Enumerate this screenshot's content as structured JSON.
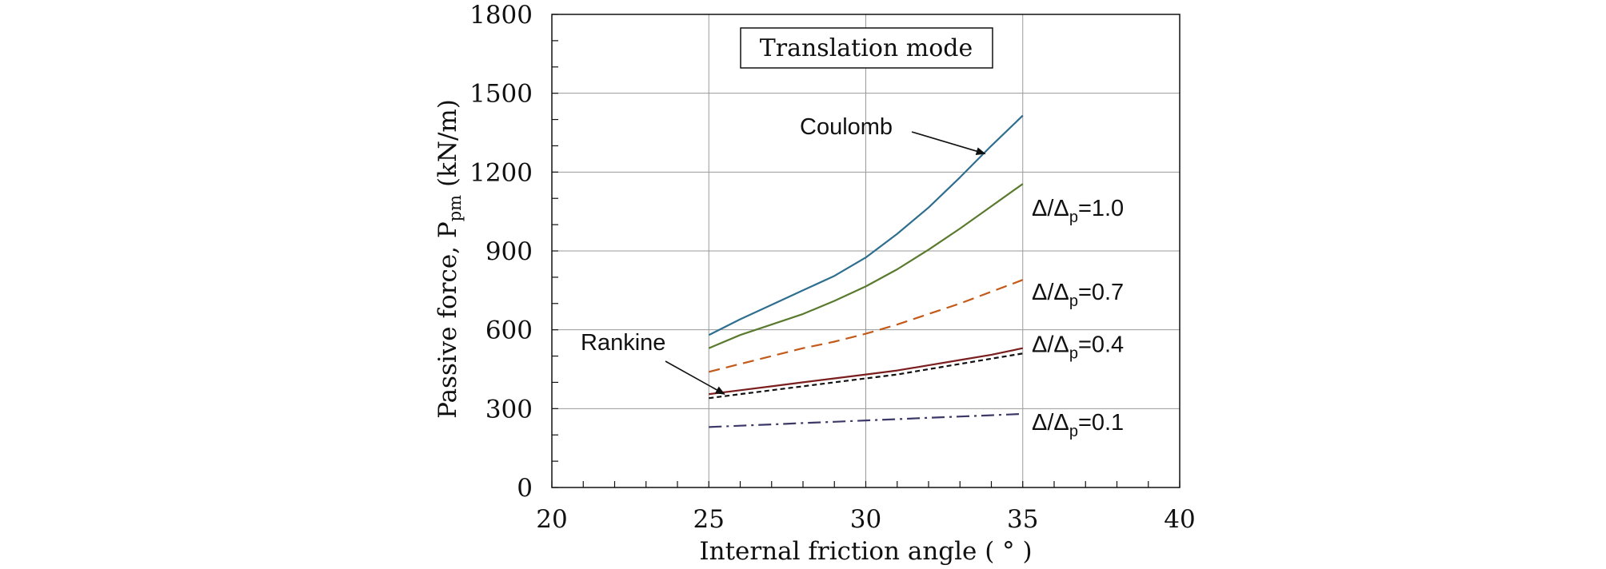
{
  "chart_data": {
    "type": "line",
    "title": "Translation mode",
    "xlabel": "Internal friction angle ( ° )",
    "ylabel_main": "Passive force, P",
    "ylabel_sub": "pm",
    "ylabel_unit": " (kN/m)",
    "xlim": [
      20,
      40
    ],
    "ylim": [
      0,
      1800
    ],
    "x_ticks": [
      "20",
      "25",
      "30",
      "35",
      "40"
    ],
    "y_ticks": [
      "0",
      "300",
      "600",
      "900",
      "1200",
      "1500",
      "1800"
    ],
    "grid": true,
    "series": [
      {
        "name": "Coulomb",
        "color": "#2e6e8e",
        "dash": "solid",
        "x": [
          25,
          26,
          27,
          28,
          29,
          30,
          31,
          32,
          33,
          34,
          35
        ],
        "values": [
          580,
          640,
          695,
          750,
          805,
          875,
          965,
          1065,
          1180,
          1300,
          1415
        ]
      },
      {
        "name": "",
        "ratio_label": {
          "prefix": "Δ/Δ",
          "sub": "p",
          "value": "=1.0"
        },
        "color": "#5a7a2e",
        "dash": "solid",
        "x": [
          25,
          26,
          27,
          28,
          29,
          30,
          31,
          32,
          33,
          34,
          35
        ],
        "values": [
          530,
          580,
          620,
          660,
          710,
          765,
          830,
          905,
          985,
          1070,
          1155
        ]
      },
      {
        "name": "",
        "ratio_label": {
          "prefix": "Δ/Δ",
          "sub": "p",
          "value": "=0.7"
        },
        "color": "#c45a1a",
        "dash": "dashed",
        "x": [
          25,
          26,
          27,
          28,
          29,
          30,
          31,
          32,
          33,
          34,
          35
        ],
        "values": [
          440,
          470,
          500,
          530,
          555,
          585,
          620,
          660,
          700,
          745,
          790
        ]
      },
      {
        "name": "",
        "ratio_label": {
          "prefix": "Δ/Δ",
          "sub": "p",
          "value": "=0.4"
        },
        "color": "#7a1e1e",
        "dash": "solid",
        "x": [
          25,
          26,
          27,
          28,
          29,
          30,
          31,
          32,
          33,
          34,
          35
        ],
        "values": [
          355,
          370,
          385,
          400,
          415,
          430,
          445,
          465,
          485,
          505,
          530
        ]
      },
      {
        "name": "Rankine",
        "color": "#111111",
        "dash": "dotted",
        "x": [
          25,
          26,
          27,
          28,
          29,
          30,
          31,
          32,
          33,
          34,
          35
        ],
        "values": [
          340,
          355,
          370,
          385,
          400,
          415,
          430,
          450,
          470,
          490,
          510
        ]
      },
      {
        "name": "",
        "ratio_label": {
          "prefix": "Δ/Δ",
          "sub": "p",
          "value": "=0.1"
        },
        "color": "#3c3868",
        "dash": "dashdot",
        "x": [
          25,
          26,
          27,
          28,
          29,
          30,
          31,
          32,
          33,
          34,
          35
        ],
        "values": [
          230,
          235,
          240,
          245,
          250,
          255,
          260,
          265,
          270,
          275,
          280
        ]
      }
    ],
    "annotations": [
      {
        "text": "Coulomb",
        "target_series": "Coulomb",
        "arrow_to": [
          33.8,
          1270
        ]
      },
      {
        "text": "Rankine",
        "target_series": "Rankine",
        "arrow_to": [
          25.5,
          355
        ]
      }
    ]
  }
}
